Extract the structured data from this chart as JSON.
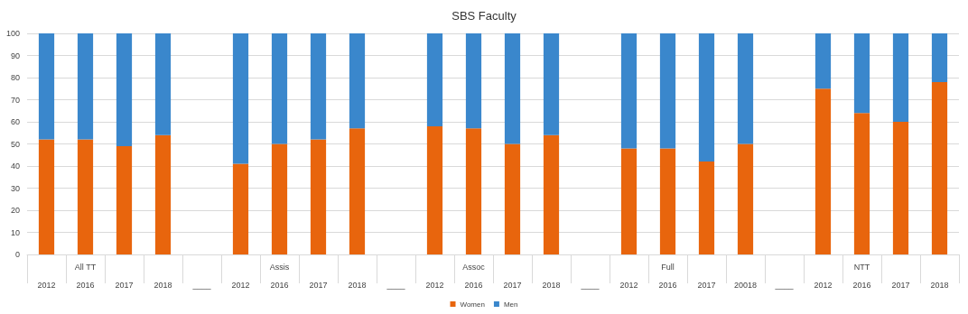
{
  "chart_data": {
    "type": "bar",
    "title": "SBS Faculty",
    "stacked": true,
    "categories": [
      "\n2012",
      "All TT\n2016",
      "\n2017",
      "\n2018",
      "\n____",
      "\n2012",
      "Assis\n2016",
      "\n2017",
      "\n2018",
      "\n____",
      "\n2012",
      "Assoc\n2016",
      "\n2017",
      "\n2018",
      "\n____",
      "\n2012",
      "Full\n2016",
      "\n2017",
      "\n20018",
      "\n____",
      "\n2012",
      "NTT\n2016",
      "\n2017",
      "\n2018"
    ],
    "series": [
      {
        "name": "Women",
        "color": "#e8650d",
        "values": [
          52,
          52,
          49,
          54,
          null,
          41,
          50,
          52,
          57,
          null,
          58,
          57,
          50,
          54,
          null,
          48,
          48,
          42,
          50,
          null,
          75,
          64,
          60,
          78
        ]
      },
      {
        "name": "Men",
        "color": "#3a87cc",
        "values": [
          48,
          48,
          51,
          46,
          null,
          59,
          50,
          48,
          43,
          null,
          42,
          43,
          50,
          46,
          null,
          52,
          52,
          58,
          50,
          null,
          25,
          36,
          40,
          22
        ]
      }
    ],
    "ylim": [
      0,
      100
    ],
    "yticks": [
      0,
      10,
      20,
      30,
      40,
      50,
      60,
      70,
      80,
      90,
      100
    ],
    "grid": "y",
    "legend": "bottom"
  }
}
